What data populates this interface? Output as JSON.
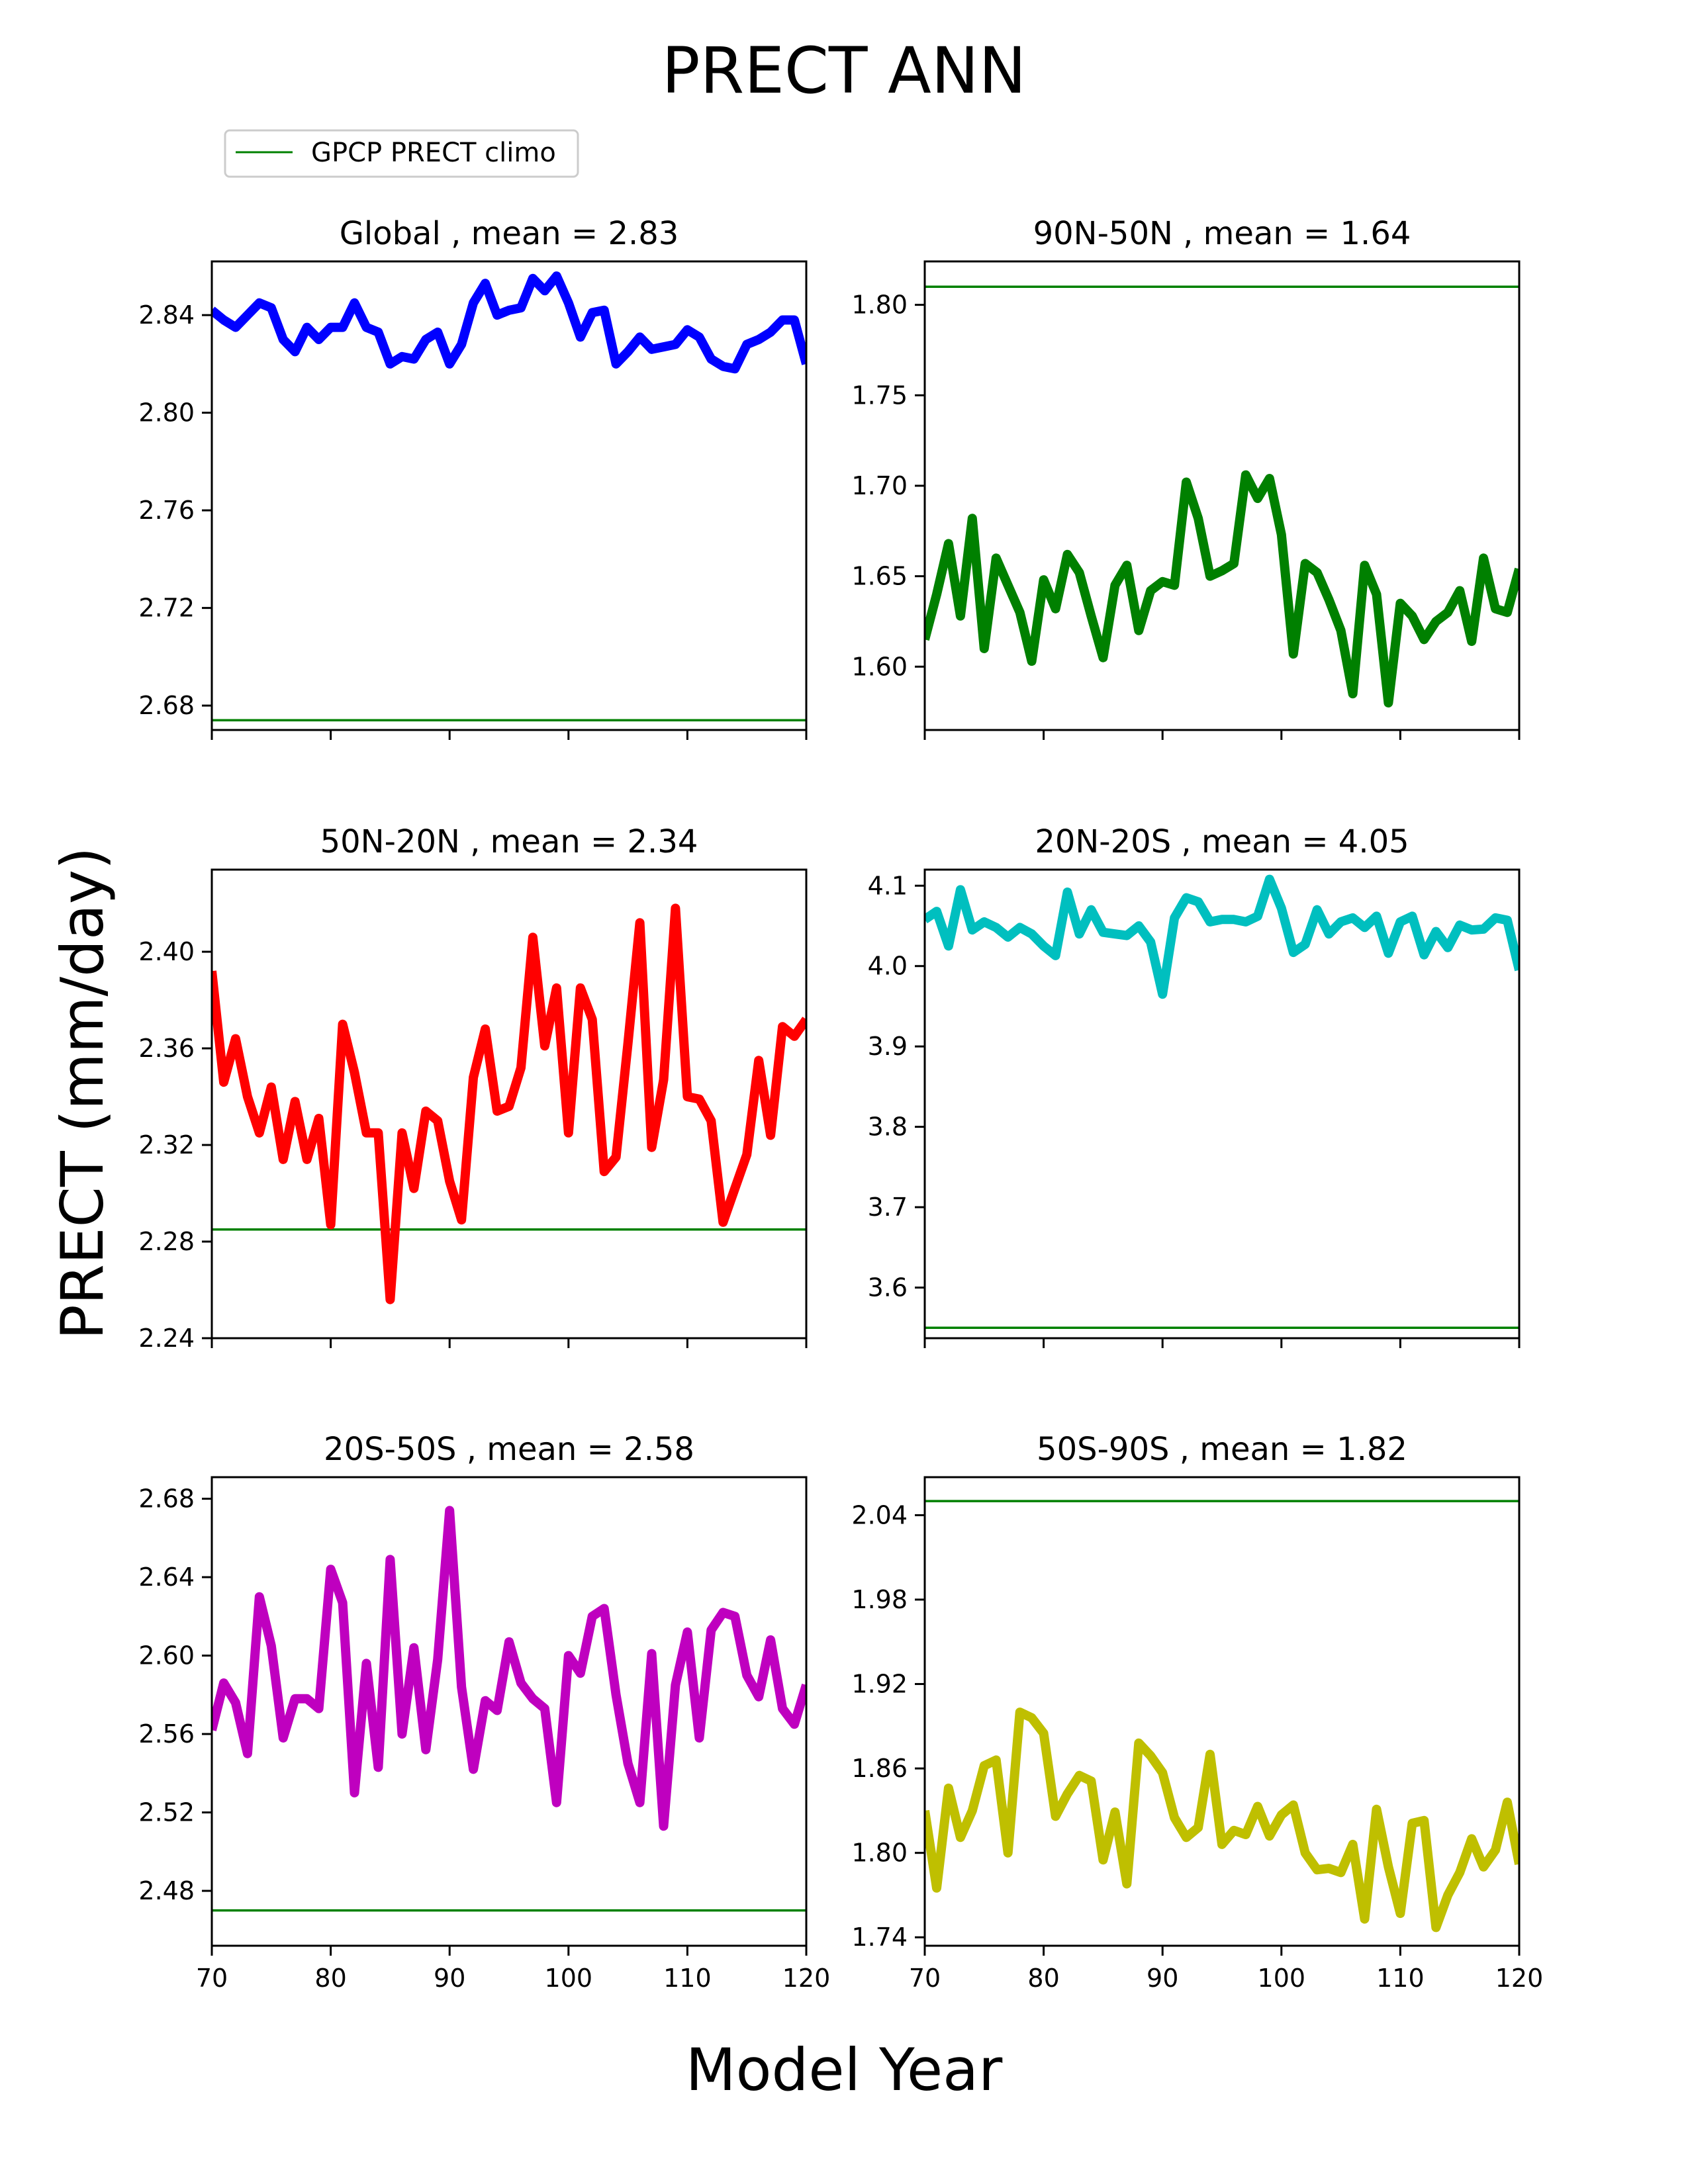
{
  "figure": {
    "suptitle": "PRECT ANN",
    "xlabel": "Model Year",
    "ylabel": "PRECT (mm/day)"
  },
  "legend": {
    "label": "GPCP PRECT climo",
    "color": "#008000",
    "placement": "top-left"
  },
  "chart_data": [
    {
      "type": "line",
      "title": "Global , mean = 2.83",
      "color": "#0000ff",
      "climo_value": 2.674,
      "xlim": [
        70,
        120
      ],
      "ylim": [
        2.67,
        2.862
      ],
      "yticks": [
        2.68,
        2.72,
        2.76,
        2.8,
        2.84
      ],
      "ytick_labels": [
        "2.68",
        "2.72",
        "2.76",
        "2.80",
        "2.84"
      ],
      "xticks": [
        70,
        80,
        90,
        100,
        110,
        120
      ],
      "xtick_labels": [],
      "x": [
        70,
        71,
        72,
        73,
        74,
        75,
        76,
        77,
        78,
        79,
        80,
        81,
        82,
        83,
        84,
        85,
        86,
        87,
        88,
        89,
        90,
        91,
        92,
        93,
        94,
        95,
        96,
        97,
        98,
        99,
        100,
        101,
        102,
        103,
        104,
        105,
        106,
        107,
        108,
        109,
        110,
        111,
        112,
        113,
        114,
        115,
        116,
        117,
        118,
        119,
        120
      ],
      "values": [
        2.842,
        2.838,
        2.835,
        2.84,
        2.845,
        2.843,
        2.83,
        2.825,
        2.835,
        2.83,
        2.835,
        2.835,
        2.845,
        2.835,
        2.833,
        2.82,
        2.823,
        2.822,
        2.83,
        2.833,
        2.82,
        2.828,
        2.845,
        2.853,
        2.84,
        2.842,
        2.843,
        2.855,
        2.85,
        2.856,
        2.845,
        2.831,
        2.841,
        2.842,
        2.82,
        2.825,
        2.831,
        2.826,
        2.827,
        2.828,
        2.834,
        2.831,
        2.822,
        2.819,
        2.818,
        2.828,
        2.83,
        2.833,
        2.838,
        2.838,
        2.82
      ]
    },
    {
      "type": "line",
      "title": "90N-50N , mean = 1.64",
      "color": "#008000",
      "climo_value": 1.81,
      "xlim": [
        70,
        120
      ],
      "ylim": [
        1.565,
        1.824
      ],
      "yticks": [
        1.6,
        1.65,
        1.7,
        1.75,
        1.8
      ],
      "ytick_labels": [
        "1.60",
        "1.65",
        "1.70",
        "1.75",
        "1.80"
      ],
      "xticks": [
        70,
        80,
        90,
        100,
        110,
        120
      ],
      "xtick_labels": [],
      "x": [
        70,
        71,
        72,
        73,
        74,
        75,
        76,
        77,
        78,
        79,
        80,
        81,
        82,
        83,
        84,
        85,
        86,
        87,
        88,
        89,
        90,
        91,
        92,
        93,
        94,
        95,
        96,
        97,
        98,
        99,
        100,
        101,
        102,
        103,
        104,
        105,
        106,
        107,
        108,
        109,
        110,
        111,
        112,
        113,
        114,
        115,
        116,
        117,
        118,
        119,
        120
      ],
      "values": [
        1.615,
        1.64,
        1.668,
        1.628,
        1.682,
        1.61,
        1.66,
        1.645,
        1.63,
        1.603,
        1.648,
        1.632,
        1.662,
        1.652,
        1.628,
        1.605,
        1.645,
        1.656,
        1.62,
        1.642,
        1.647,
        1.645,
        1.702,
        1.682,
        1.65,
        1.653,
        1.657,
        1.706,
        1.693,
        1.704,
        1.673,
        1.607,
        1.657,
        1.652,
        1.637,
        1.62,
        1.585,
        1.656,
        1.64,
        1.58,
        1.635,
        1.628,
        1.615,
        1.625,
        1.63,
        1.642,
        1.614,
        1.66,
        1.632,
        1.63,
        1.654
      ]
    },
    {
      "type": "line",
      "title": "50N-20N , mean = 2.34",
      "color": "#ff0000",
      "climo_value": 2.285,
      "xlim": [
        70,
        120
      ],
      "ylim": [
        2.24,
        2.434
      ],
      "yticks": [
        2.24,
        2.28,
        2.32,
        2.36,
        2.4
      ],
      "ytick_labels": [
        "2.24",
        "2.28",
        "2.32",
        "2.36",
        "2.40"
      ],
      "xticks": [
        70,
        80,
        90,
        100,
        110,
        120
      ],
      "xtick_labels": [],
      "x": [
        70,
        71,
        72,
        73,
        74,
        75,
        76,
        77,
        78,
        79,
        80,
        81,
        82,
        83,
        84,
        85,
        86,
        87,
        88,
        89,
        90,
        91,
        92,
        93,
        94,
        95,
        96,
        97,
        98,
        99,
        100,
        101,
        102,
        103,
        104,
        105,
        106,
        107,
        108,
        109,
        110,
        111,
        112,
        113,
        114,
        115,
        116,
        117,
        118,
        119,
        120
      ],
      "values": [
        2.392,
        2.346,
        2.364,
        2.34,
        2.325,
        2.344,
        2.314,
        2.338,
        2.314,
        2.331,
        2.287,
        2.37,
        2.35,
        2.325,
        2.325,
        2.256,
        2.325,
        2.302,
        2.334,
        2.33,
        2.305,
        2.289,
        2.348,
        2.368,
        2.334,
        2.336,
        2.352,
        2.406,
        2.361,
        2.385,
        2.325,
        2.385,
        2.372,
        2.309,
        2.315,
        2.362,
        2.412,
        2.319,
        2.347,
        2.418,
        2.34,
        2.339,
        2.33,
        2.288,
        2.302,
        2.316,
        2.355,
        2.324,
        2.369,
        2.365,
        2.372
      ]
    },
    {
      "type": "line",
      "title": "20N-20S , mean = 4.05",
      "color": "#00bfbf",
      "climo_value": 3.55,
      "xlim": [
        70,
        120
      ],
      "ylim": [
        3.537,
        4.12
      ],
      "yticks": [
        3.6,
        3.7,
        3.8,
        3.9,
        4.0,
        4.1
      ],
      "ytick_labels": [
        "3.6",
        "3.7",
        "3.8",
        "3.9",
        "4.0",
        "4.1"
      ],
      "xticks": [
        70,
        80,
        90,
        100,
        110,
        120
      ],
      "xtick_labels": [],
      "x": [
        70,
        71,
        72,
        73,
        74,
        75,
        76,
        77,
        78,
        79,
        80,
        81,
        82,
        83,
        84,
        85,
        86,
        87,
        88,
        89,
        90,
        91,
        92,
        93,
        94,
        95,
        96,
        97,
        98,
        99,
        100,
        101,
        102,
        103,
        104,
        105,
        106,
        107,
        108,
        109,
        110,
        111,
        112,
        113,
        114,
        115,
        116,
        117,
        118,
        119,
        120
      ],
      "values": [
        4.058,
        4.068,
        4.025,
        4.095,
        4.045,
        4.055,
        4.048,
        4.036,
        4.048,
        4.04,
        4.025,
        4.013,
        4.092,
        4.04,
        4.07,
        4.042,
        4.04,
        4.038,
        4.05,
        4.03,
        3.965,
        4.06,
        4.085,
        4.08,
        4.055,
        4.058,
        4.058,
        4.055,
        4.062,
        4.108,
        4.072,
        4.017,
        4.027,
        4.07,
        4.04,
        4.055,
        4.06,
        4.048,
        4.062,
        4.016,
        4.055,
        4.062,
        4.014,
        4.043,
        4.023,
        4.051,
        4.045,
        4.046,
        4.06,
        4.057,
        3.995
      ]
    },
    {
      "type": "line",
      "title": "20S-50S , mean = 2.58",
      "color": "#bf00bf",
      "climo_value": 2.47,
      "xlim": [
        70,
        120
      ],
      "ylim": [
        2.452,
        2.691
      ],
      "yticks": [
        2.48,
        2.52,
        2.56,
        2.6,
        2.64,
        2.68
      ],
      "ytick_labels": [
        "2.48",
        "2.52",
        "2.56",
        "2.60",
        "2.64",
        "2.68"
      ],
      "xticks": [
        70,
        80,
        90,
        100,
        110,
        120
      ],
      "xtick_labels": [
        "70",
        "80",
        "90",
        "100",
        "110",
        "120"
      ],
      "x": [
        70,
        71,
        72,
        73,
        74,
        75,
        76,
        77,
        78,
        79,
        80,
        81,
        82,
        83,
        84,
        85,
        86,
        87,
        88,
        89,
        90,
        91,
        92,
        93,
        94,
        95,
        96,
        97,
        98,
        99,
        100,
        101,
        102,
        103,
        104,
        105,
        106,
        107,
        108,
        109,
        110,
        111,
        112,
        113,
        114,
        115,
        116,
        117,
        118,
        119,
        120
      ],
      "values": [
        2.562,
        2.586,
        2.576,
        2.55,
        2.63,
        2.605,
        2.558,
        2.578,
        2.578,
        2.573,
        2.644,
        2.627,
        2.53,
        2.596,
        2.543,
        2.649,
        2.56,
        2.604,
        2.552,
        2.598,
        2.674,
        2.584,
        2.542,
        2.577,
        2.572,
        2.607,
        2.586,
        2.578,
        2.573,
        2.525,
        2.6,
        2.591,
        2.62,
        2.624,
        2.58,
        2.545,
        2.525,
        2.601,
        2.513,
        2.585,
        2.612,
        2.558,
        2.613,
        2.622,
        2.62,
        2.59,
        2.579,
        2.608,
        2.573,
        2.565,
        2.585
      ]
    },
    {
      "type": "line",
      "title": "50S-90S , mean = 1.82",
      "color": "#bfbf00",
      "climo_value": 2.05,
      "xlim": [
        70,
        120
      ],
      "ylim": [
        1.734,
        2.067
      ],
      "yticks": [
        1.74,
        1.8,
        1.86,
        1.92,
        1.98,
        2.04
      ],
      "ytick_labels": [
        "1.74",
        "1.80",
        "1.86",
        "1.92",
        "1.98",
        "2.04"
      ],
      "xticks": [
        70,
        80,
        90,
        100,
        110,
        120
      ],
      "xtick_labels": [
        "70",
        "80",
        "90",
        "100",
        "110",
        "120"
      ],
      "x": [
        70,
        71,
        72,
        73,
        74,
        75,
        76,
        77,
        78,
        79,
        80,
        81,
        82,
        83,
        84,
        85,
        86,
        87,
        88,
        89,
        90,
        91,
        92,
        93,
        94,
        95,
        96,
        97,
        98,
        99,
        100,
        101,
        102,
        103,
        104,
        105,
        106,
        107,
        108,
        109,
        110,
        111,
        112,
        113,
        114,
        115,
        116,
        117,
        118,
        119,
        120
      ],
      "values": [
        1.83,
        1.775,
        1.846,
        1.811,
        1.83,
        1.862,
        1.866,
        1.8,
        1.9,
        1.896,
        1.885,
        1.826,
        1.842,
        1.855,
        1.851,
        1.795,
        1.829,
        1.778,
        1.878,
        1.869,
        1.857,
        1.825,
        1.811,
        1.818,
        1.87,
        1.806,
        1.816,
        1.813,
        1.833,
        1.812,
        1.827,
        1.834,
        1.8,
        1.788,
        1.789,
        1.786,
        1.806,
        1.753,
        1.831,
        1.79,
        1.757,
        1.821,
        1.823,
        1.747,
        1.77,
        1.786,
        1.81,
        1.79,
        1.802,
        1.836,
        1.792
      ]
    }
  ]
}
